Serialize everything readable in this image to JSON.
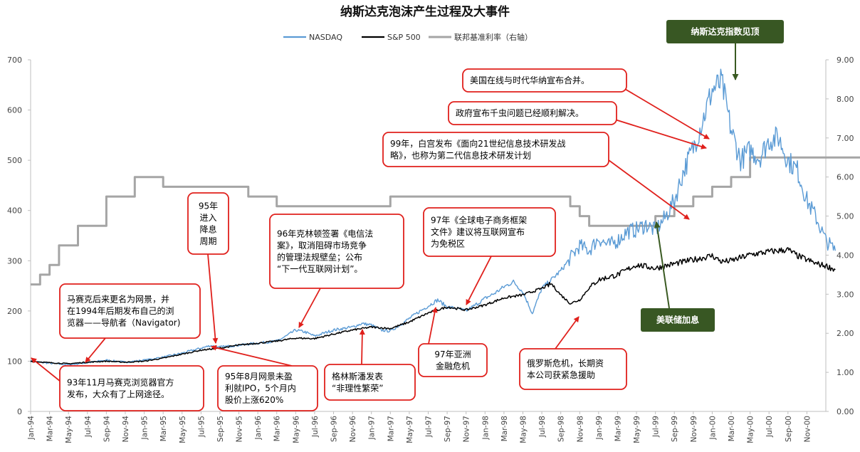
{
  "chart_data": {
    "type": "line",
    "title": "纳斯达克泡沫产生过程及大事件",
    "legend": [
      {
        "name": "NASDAQ",
        "color": "#5b9bd5"
      },
      {
        "name": "S&P 500",
        "color": "#000000"
      },
      {
        "name": "联邦基准利率（右轴）",
        "color": "#a5a5a5"
      }
    ],
    "legend_position": "top-center",
    "y_left": {
      "min": 0,
      "max": 700,
      "ticks": [
        "0",
        "100",
        "200",
        "300",
        "400",
        "500",
        "600",
        "700"
      ]
    },
    "y_right": {
      "min": 0,
      "max": 9,
      "ticks": [
        "0.00",
        "1.00",
        "2.00",
        "3.00",
        "4.00",
        "5.00",
        "6.00",
        "7.00",
        "8.00",
        "9.00"
      ]
    },
    "x_labels": [
      "Jan-94",
      "Mar-94",
      "May-94",
      "Jul-94",
      "Sep-94",
      "Nov-94",
      "Jan-95",
      "Mar-95",
      "May-95",
      "Jul-95",
      "Sep-95",
      "Nov-95",
      "Jan-96",
      "Mar-96",
      "May-96",
      "Jul-96",
      "Sep-96",
      "Nov-96",
      "Jan-97",
      "Mar-97",
      "May-97",
      "Jul-97",
      "Sep-97",
      "Nov-97",
      "Jan-98",
      "Mar-98",
      "May-98",
      "Jul-98",
      "Sep-98",
      "Nov-98",
      "Jan-99",
      "Mar-99",
      "May-99",
      "Jul-99",
      "Sep-99",
      "Nov-99",
      "Jan-00",
      "Mar-00",
      "May-00",
      "Jul-00",
      "Sep-00",
      "Nov-00"
    ],
    "grid": false,
    "series": [
      {
        "name": "NASDAQ",
        "axis": "left",
        "points": [
          [
            0,
            100
          ],
          [
            2,
            96
          ],
          [
            4,
            93
          ],
          [
            6,
            97
          ],
          [
            8,
            102
          ],
          [
            10,
            98
          ],
          [
            12,
            102
          ],
          [
            14,
            108
          ],
          [
            16,
            116
          ],
          [
            18,
            126
          ],
          [
            19,
            131
          ],
          [
            20,
            128
          ],
          [
            22,
            132
          ],
          [
            24,
            136
          ],
          [
            26,
            140
          ],
          [
            27,
            150
          ],
          [
            28,
            162
          ],
          [
            29,
            158
          ],
          [
            30,
            150
          ],
          [
            32,
            162
          ],
          [
            34,
            168
          ],
          [
            35,
            175
          ],
          [
            36,
            172
          ],
          [
            37,
            162
          ],
          [
            38,
            160
          ],
          [
            39,
            172
          ],
          [
            40,
            185
          ],
          [
            41,
            198
          ],
          [
            42,
            210
          ],
          [
            43,
            222
          ],
          [
            44,
            208
          ],
          [
            45,
            205
          ],
          [
            46,
            200
          ],
          [
            47,
            212
          ],
          [
            48,
            225
          ],
          [
            49,
            235
          ],
          [
            50,
            248
          ],
          [
            51,
            258
          ],
          [
            52,
            238
          ],
          [
            53,
            195
          ],
          [
            54,
            245
          ],
          [
            55,
            262
          ],
          [
            56,
            280
          ],
          [
            57,
            305
          ],
          [
            58,
            330
          ],
          [
            59,
            320
          ],
          [
            60,
            345
          ],
          [
            61,
            330
          ],
          [
            62,
            340
          ],
          [
            63,
            358
          ],
          [
            64,
            362
          ],
          [
            65,
            372
          ],
          [
            66,
            360
          ],
          [
            67,
            385
          ],
          [
            68,
            420
          ],
          [
            69,
            480
          ],
          [
            70,
            525
          ],
          [
            71,
            580
          ],
          [
            72,
            640
          ],
          [
            73,
            655
          ],
          [
            74,
            560
          ],
          [
            75,
            500
          ],
          [
            76,
            520
          ],
          [
            77,
            505
          ],
          [
            78,
            540
          ],
          [
            79,
            545
          ],
          [
            80,
            500
          ],
          [
            81,
            480
          ],
          [
            82,
            420
          ],
          [
            83,
            385
          ],
          [
            84,
            340
          ],
          [
            85,
            320
          ]
        ]
      },
      {
        "name": "S&P 500",
        "axis": "left",
        "points": [
          [
            0,
            100
          ],
          [
            2,
            97
          ],
          [
            4,
            95
          ],
          [
            6,
            98
          ],
          [
            8,
            100
          ],
          [
            10,
            98
          ],
          [
            12,
            100
          ],
          [
            14,
            106
          ],
          [
            16,
            114
          ],
          [
            18,
            122
          ],
          [
            20,
            126
          ],
          [
            22,
            132
          ],
          [
            24,
            136
          ],
          [
            26,
            140
          ],
          [
            28,
            146
          ],
          [
            30,
            145
          ],
          [
            32,
            154
          ],
          [
            34,
            162
          ],
          [
            36,
            168
          ],
          [
            38,
            165
          ],
          [
            40,
            178
          ],
          [
            42,
            196
          ],
          [
            44,
            208
          ],
          [
            46,
            202
          ],
          [
            48,
            212
          ],
          [
            50,
            226
          ],
          [
            52,
            232
          ],
          [
            54,
            245
          ],
          [
            55,
            254
          ],
          [
            56,
            232
          ],
          [
            57,
            215
          ],
          [
            58,
            222
          ],
          [
            59,
            246
          ],
          [
            60,
            262
          ],
          [
            62,
            272
          ],
          [
            64,
            292
          ],
          [
            66,
            285
          ],
          [
            68,
            294
          ],
          [
            70,
            302
          ],
          [
            72,
            310
          ],
          [
            73,
            298
          ],
          [
            74,
            300
          ],
          [
            76,
            312
          ],
          [
            78,
            318
          ],
          [
            80,
            322
          ],
          [
            81,
            310
          ],
          [
            82,
            302
          ],
          [
            83,
            294
          ],
          [
            84,
            290
          ],
          [
            85,
            282
          ]
        ]
      },
      {
        "name": "联邦基准利率（右轴）",
        "axis": "right",
        "points": [
          [
            0,
            3.25
          ],
          [
            1,
            3.25
          ],
          [
            1,
            3.5
          ],
          [
            2,
            3.5
          ],
          [
            2,
            3.75
          ],
          [
            3,
            3.75
          ],
          [
            3,
            4.25
          ],
          [
            5,
            4.25
          ],
          [
            5,
            4.75
          ],
          [
            8,
            4.75
          ],
          [
            8,
            5.5
          ],
          [
            11,
            5.5
          ],
          [
            11,
            6.0
          ],
          [
            14,
            6.0
          ],
          [
            14,
            5.75
          ],
          [
            23,
            5.75
          ],
          [
            23,
            5.5
          ],
          [
            26,
            5.5
          ],
          [
            26,
            5.25
          ],
          [
            38,
            5.25
          ],
          [
            38,
            5.5
          ],
          [
            57,
            5.5
          ],
          [
            57,
            5.25
          ],
          [
            58,
            5.25
          ],
          [
            58,
            5.0
          ],
          [
            59,
            5.0
          ],
          [
            59,
            4.75
          ],
          [
            66,
            4.75
          ],
          [
            66,
            5.0
          ],
          [
            68,
            5.0
          ],
          [
            68,
            5.25
          ],
          [
            70,
            5.25
          ],
          [
            70,
            5.5
          ],
          [
            72,
            5.5
          ],
          [
            72,
            5.75
          ],
          [
            74,
            5.75
          ],
          [
            74,
            6.0
          ],
          [
            76,
            6.0
          ],
          [
            76,
            6.5
          ],
          [
            88,
            6.5
          ]
        ]
      }
    ],
    "annotations": [
      {
        "lines": [
          "美国在线与时代华纳宣布合并。"
        ]
      },
      {
        "lines": [
          "政府宣布千虫问题已经顺利解决。"
        ]
      },
      {
        "lines": [
          "99年，白宫发布《面向21世纪信息技术研发战",
          "略》，也称为第二代信息技术研发计划"
        ]
      },
      {
        "lines": [
          "95年",
          "进入",
          "降息",
          "周期"
        ]
      },
      {
        "lines": [
          "96年克林顿签署《电信法",
          "案》，取消阻碍市场竞争",
          "的管理法规壁垒；公布",
          "“下一代互联网计划”。"
        ]
      },
      {
        "lines": [
          "97年《全球电子商务框架",
          "文件》建议将互联网宣布",
          "为免税区"
        ]
      },
      {
        "lines": [
          "马赛克后来更名为网景，并",
          "在1994年后期发布自己的浏",
          "览器——导航者（Navigator)"
        ]
      },
      {
        "lines": [
          "93年11月马赛克浏览器官方",
          "发布，大众有了上网途径。"
        ]
      },
      {
        "lines": [
          "95年8月网景未盈",
          "利就IPO，5个月内",
          "股价上涨620%"
        ]
      },
      {
        "lines": [
          "格林斯潘发表",
          "“非理性繁荣”"
        ]
      },
      {
        "lines": [
          "97年亚洲",
          "金融危机"
        ]
      },
      {
        "lines": [
          "俄罗斯危机，长期资",
          "本公司获紧急援助"
        ]
      },
      {
        "lines": [
          "纳斯达克指数见顶"
        ]
      },
      {
        "lines": [
          "美联储加息"
        ]
      }
    ]
  }
}
